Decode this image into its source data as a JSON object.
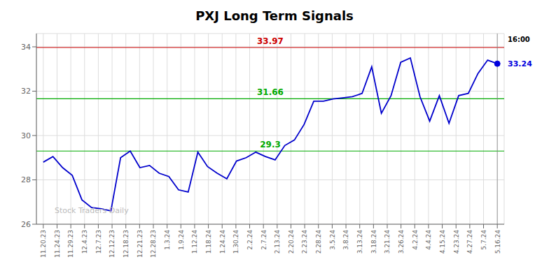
{
  "chart_data": {
    "type": "line",
    "title": "PXJ Long Term Signals",
    "color": "#0000cc",
    "grid": true,
    "xlim": [
      -0.5,
      33.5
    ],
    "xticks": [
      {
        "value": 0,
        "label": "11.20.23"
      },
      {
        "value": 1,
        "label": "11.24.23"
      },
      {
        "value": 2,
        "label": "11.29.23"
      },
      {
        "value": 3,
        "label": "12.4.23"
      },
      {
        "value": 4,
        "label": "12.7.23"
      },
      {
        "value": 5,
        "label": "12.12.23"
      },
      {
        "value": 6,
        "label": "12.18.23"
      },
      {
        "value": 7,
        "label": "12.21.23"
      },
      {
        "value": 8,
        "label": "12.28.23"
      },
      {
        "value": 9,
        "label": "1.3.24"
      },
      {
        "value": 10,
        "label": "1.9.24"
      },
      {
        "value": 11,
        "label": "1.12.24"
      },
      {
        "value": 12,
        "label": "1.18.24"
      },
      {
        "value": 13,
        "label": "1.24.24"
      },
      {
        "value": 14,
        "label": "1.30.24"
      },
      {
        "value": 15,
        "label": "2.2.24"
      },
      {
        "value": 16,
        "label": "2.7.24"
      },
      {
        "value": 17,
        "label": "2.13.24"
      },
      {
        "value": 18,
        "label": "2.20.24"
      },
      {
        "value": 19,
        "label": "2.23.24"
      },
      {
        "value": 20,
        "label": "2.28.24"
      },
      {
        "value": 21,
        "label": "3.5.24"
      },
      {
        "value": 22,
        "label": "3.8.24"
      },
      {
        "value": 23,
        "label": "3.13.24"
      },
      {
        "value": 24,
        "label": "3.18.24"
      },
      {
        "value": 25,
        "label": "3.21.24"
      },
      {
        "value": 26,
        "label": "3.26.24"
      },
      {
        "value": 27,
        "label": "4.2.24"
      },
      {
        "value": 28,
        "label": "4.4.24"
      },
      {
        "value": 29,
        "label": "4.15.24"
      },
      {
        "value": 30,
        "label": "4.23.24"
      },
      {
        "value": 31,
        "label": "4.27.24"
      },
      {
        "value": 32,
        "label": "5.7.24"
      },
      {
        "value": 33,
        "label": "5.16.24"
      }
    ],
    "ylim": [
      26,
      34.6
    ],
    "yticks": [
      26,
      28,
      30,
      32,
      34
    ],
    "values": [
      28.8,
      29.05,
      28.55,
      28.2,
      27.1,
      26.75,
      26.7,
      26.6,
      29.0,
      29.3,
      28.55,
      28.65,
      28.3,
      28.15,
      27.55,
      27.45,
      29.25,
      28.6,
      28.3,
      28.05,
      28.85,
      29.0,
      29.25,
      29.05,
      28.9,
      29.55,
      29.8,
      30.5,
      31.55,
      31.55,
      31.65,
      31.7,
      31.75,
      31.9,
      33.1,
      31.0,
      31.8,
      33.3,
      33.5,
      31.75,
      30.65,
      31.8,
      30.55,
      31.8,
      31.9,
      32.8,
      33.4,
      33.24
    ],
    "reference_lines": [
      {
        "value": 33.97,
        "color": "#cc0000"
      },
      {
        "value": 31.66,
        "color": "#00aa00"
      },
      {
        "value": 29.3,
        "color": "#00aa00"
      }
    ],
    "last_value": {
      "value": 33.24,
      "color": "#0000dd"
    },
    "annotations": [
      {
        "text": "16:00",
        "y": 33.97,
        "color": "#000000"
      },
      {
        "text": "Stock Traders Daily",
        "color": "#bbbbbb"
      }
    ]
  }
}
